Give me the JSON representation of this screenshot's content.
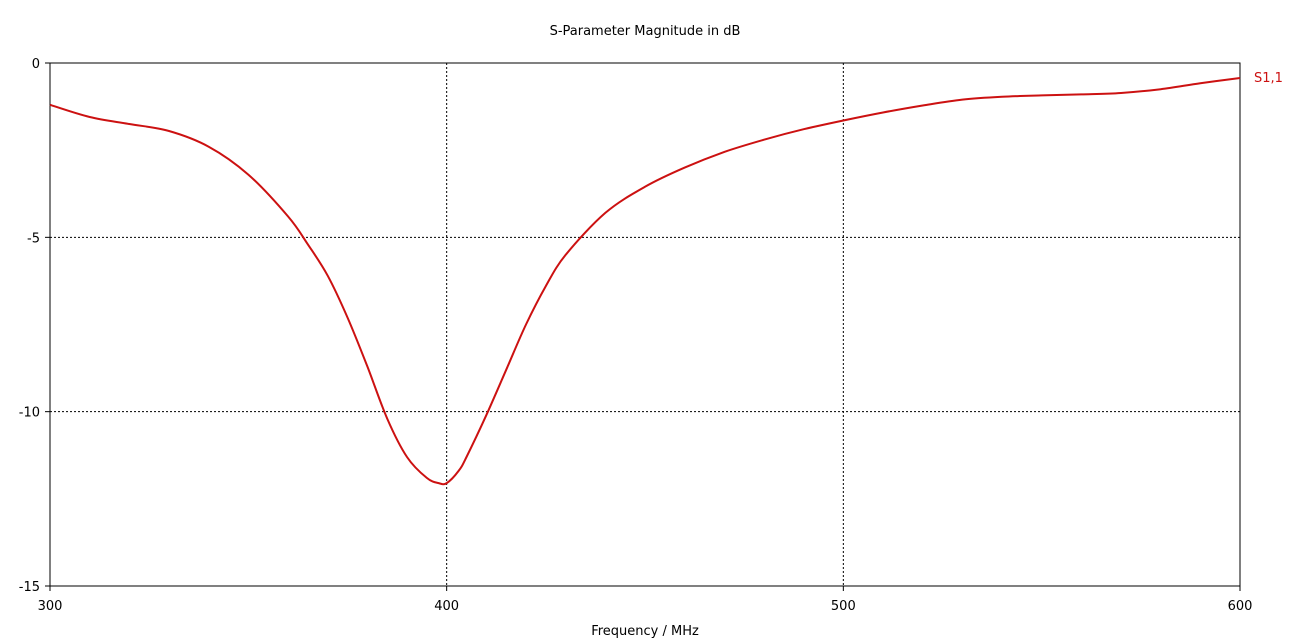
{
  "chart_data": {
    "type": "line",
    "title": "S-Parameter Magnitude in dB",
    "xlabel": "Frequency / MHz",
    "ylabel": "",
    "xlim": [
      300,
      600
    ],
    "ylim": [
      -15,
      0
    ],
    "x_ticks": [
      300,
      400,
      500,
      600
    ],
    "x_tick_labels": [
      "300",
      "400",
      "500",
      "600"
    ],
    "y_ticks": [
      0,
      -5,
      -10,
      -15
    ],
    "y_tick_labels": [
      "0",
      "-5",
      "-10",
      "-15"
    ],
    "grid": true,
    "grid_style": "dotted",
    "legend_placement": "right-end-of-line",
    "series": [
      {
        "name": "S1,1",
        "color": "#cc1111",
        "x": [
          300,
          310,
          320,
          330,
          340,
          350,
          360,
          365,
          370,
          375,
          380,
          385,
          390,
          395,
          398,
          400,
          403,
          405,
          410,
          415,
          420,
          425,
          430,
          440,
          450,
          460,
          470,
          480,
          490,
          500,
          510,
          520,
          530,
          540,
          550,
          560,
          570,
          580,
          590,
          600
        ],
        "y": [
          -1.2,
          -1.55,
          -1.75,
          -1.95,
          -2.4,
          -3.2,
          -4.4,
          -5.2,
          -6.1,
          -7.3,
          -8.7,
          -10.2,
          -11.3,
          -11.9,
          -12.05,
          -12.05,
          -11.7,
          -11.3,
          -10.1,
          -8.8,
          -7.5,
          -6.4,
          -5.5,
          -4.3,
          -3.55,
          -3.0,
          -2.55,
          -2.2,
          -1.9,
          -1.65,
          -1.42,
          -1.22,
          -1.05,
          -0.97,
          -0.93,
          -0.9,
          -0.86,
          -0.75,
          -0.58,
          -0.43
        ]
      }
    ]
  }
}
